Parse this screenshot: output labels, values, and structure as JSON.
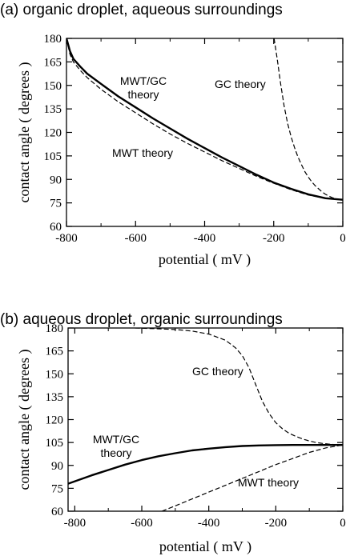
{
  "chart_data": [
    {
      "type": "line",
      "title": "(a) organic droplet, aqueous surroundings",
      "xlabel": "potential ( mV )",
      "ylabel": "contact angle ( degrees )",
      "xlim": [
        -800,
        0
      ],
      "ylim": [
        60,
        180
      ],
      "xticks": [
        "-800",
        "-600",
        "-400",
        "-200",
        "0"
      ],
      "yticks": [
        "60",
        "75",
        "90",
        "105",
        "120",
        "135",
        "150",
        "165",
        "180"
      ],
      "grid": false,
      "series": [
        {
          "name": "MWT/GC theory",
          "style": "solid",
          "x": [
            -800,
            -790,
            -780,
            -760,
            -740,
            -700,
            -650,
            -600,
            -550,
            -500,
            -450,
            -400,
            -350,
            -300,
            -250,
            -200,
            -150,
            -100,
            -50,
            0
          ],
          "y": [
            180,
            172,
            167,
            162,
            157.5,
            151,
            143,
            136,
            129,
            122.5,
            116,
            110,
            104,
            98.5,
            93,
            88,
            84,
            80.5,
            78,
            77
          ]
        },
        {
          "name": "MWT theory",
          "style": "dashed",
          "x": [
            -800,
            -790,
            -780,
            -760,
            -740,
            -700,
            -650,
            -600,
            -550,
            -500,
            -450,
            -400,
            -350,
            -300,
            -250,
            -200,
            -150,
            -100,
            -50,
            0
          ],
          "y": [
            180,
            170,
            165,
            159.5,
            155,
            147.5,
            139.5,
            132.5,
            125.5,
            119,
            113,
            107.5,
            102,
            97,
            92,
            87.5,
            83.5,
            80,
            78,
            77
          ]
        },
        {
          "name": "GC theory",
          "style": "dashed",
          "x": [
            -199,
            -190,
            -180,
            -170,
            -160,
            -150,
            -140,
            -130,
            -120,
            -110,
            -100,
            -90,
            -80,
            -70,
            -60,
            -50,
            -40,
            -30,
            -20,
            -10,
            0
          ],
          "y": [
            180,
            167,
            151,
            137,
            126,
            117.5,
            110.5,
            104.5,
            99.5,
            95,
            91.5,
            88.5,
            86,
            84,
            82,
            80.5,
            79.3,
            78.3,
            77.6,
            77.2,
            77
          ]
        }
      ],
      "annotations": [
        "GC theory",
        "MWT/GC",
        "theory",
        "MWT theory"
      ]
    },
    {
      "type": "line",
      "title": "(b) aqueous droplet, organic surroundings",
      "xlabel": "potential ( mV )",
      "ylabel": "contact angle ( degrees )",
      "xlim": [
        -820,
        0
      ],
      "ylim": [
        60,
        180
      ],
      "xticks": [
        "-800",
        "-600",
        "-400",
        "-200",
        "0"
      ],
      "yticks": [
        "60",
        "75",
        "90",
        "105",
        "120",
        "135",
        "150",
        "165",
        "180"
      ],
      "grid": false,
      "series": [
        {
          "name": "MWT/GC theory",
          "style": "solid",
          "x": [
            -820,
            -750,
            -700,
            -650,
            -600,
            -550,
            -500,
            -450,
            -400,
            -350,
            -300,
            -250,
            -200,
            -150,
            -100,
            -50,
            0
          ],
          "y": [
            78,
            83.5,
            87,
            90.5,
            93.5,
            96,
            98,
            99.8,
            101,
            102,
            102.7,
            103.1,
            103.3,
            103.4,
            103.4,
            103.4,
            103.4
          ]
        },
        {
          "name": "MWT theory",
          "style": "dashed",
          "x": [
            -540,
            -500,
            -450,
            -400,
            -350,
            -300,
            -250,
            -200,
            -150,
            -100,
            -50,
            0
          ],
          "y": [
            60,
            63.5,
            68,
            72.5,
            77,
            81.5,
            86,
            90.5,
            94.5,
            98.5,
            101.5,
            103.4
          ]
        },
        {
          "name": "GC theory",
          "style": "dashed",
          "x": [
            -620,
            -550,
            -500,
            -450,
            -400,
            -350,
            -320,
            -300,
            -280,
            -260,
            -240,
            -220,
            -200,
            -180,
            -160,
            -140,
            -120,
            -100,
            -80,
            -60,
            -40,
            -20,
            0
          ],
          "y": [
            180,
            179.5,
            179,
            178,
            176,
            172,
            167,
            162,
            154,
            143,
            132,
            124,
            118,
            114,
            111,
            109,
            107.3,
            106,
            105,
            104.4,
            103.9,
            103.6,
            103.4
          ]
        }
      ],
      "annotations": [
        "GC theory",
        "MWT/GC",
        "theory",
        "MWT theory"
      ]
    }
  ]
}
